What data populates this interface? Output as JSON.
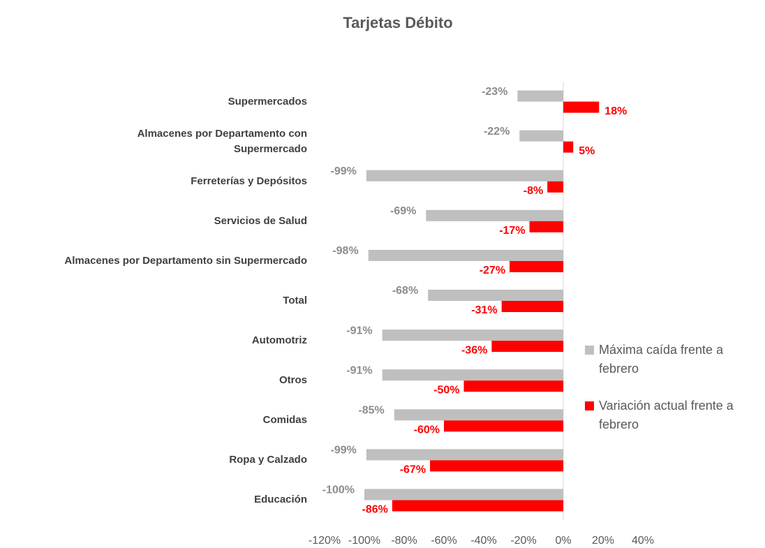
{
  "chart_data": {
    "type": "bar",
    "orientation": "horizontal",
    "title": "Tarjetas Débito",
    "categories": [
      "Supermercados",
      "Almacenes por Departamento con\nSupermercado",
      "Ferreterías y Depósitos",
      "Servicios de Salud",
      "Almacenes por Departamento sin Supermercado",
      "Total",
      "Automotriz",
      "Otros",
      "Comidas",
      "Ropa y Calzado",
      "Educación"
    ],
    "series": [
      {
        "name": "Máxima caída frente a febrero",
        "color": "#bfbfbf",
        "values": [
          -23,
          -22,
          -99,
          -69,
          -98,
          -68,
          -91,
          -91,
          -85,
          -99,
          -100
        ],
        "value_labels": [
          "-23%",
          "-22%",
          "-99%",
          "-69%",
          "-98%",
          "-68%",
          "-91%",
          "-91%",
          "-85%",
          "-99%",
          "-100%"
        ]
      },
      {
        "name": "Variación actual frente a febrero",
        "color": "#ff0000",
        "values": [
          18,
          5,
          -8,
          -17,
          -27,
          -31,
          -36,
          -50,
          -60,
          -67,
          -86
        ],
        "value_labels": [
          "18%",
          "5%",
          "-8%",
          "-17%",
          "-27%",
          "-31%",
          "-36%",
          "-50%",
          "-60%",
          "-67%",
          "-86%"
        ]
      }
    ],
    "xlim": [
      -120,
      40
    ],
    "xticks": [
      {
        "value": -120,
        "label": "-120%"
      },
      {
        "value": -100,
        "label": "-100%"
      },
      {
        "value": -80,
        "label": "-80%"
      },
      {
        "value": -60,
        "label": "-60%"
      },
      {
        "value": -40,
        "label": "-40%"
      },
      {
        "value": -20,
        "label": "-20%"
      },
      {
        "value": 0,
        "label": "0%"
      },
      {
        "value": 20,
        "label": "20%"
      },
      {
        "value": 40,
        "label": "40%"
      }
    ],
    "legend": "right",
    "grid": false
  }
}
